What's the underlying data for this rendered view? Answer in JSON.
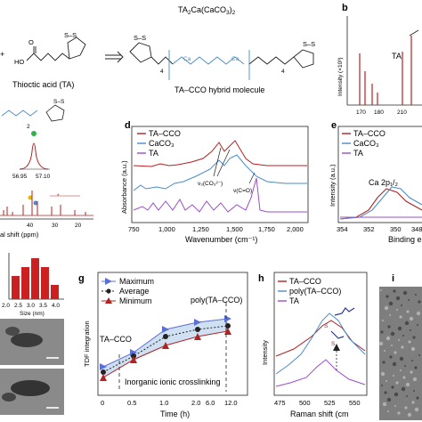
{
  "panel_labels": {
    "b": "b",
    "d": "d",
    "e": "e",
    "g": "g",
    "h": "h",
    "i": "i"
  },
  "top": {
    "formula_pre": "TA",
    "formula_sub1": "2",
    "formula_mid": "Ca(CaCO",
    "formula_sub2": "3",
    "formula_end": ")",
    "formula_sub3": "2",
    "ta_name": "Thioctic acid (TA)",
    "hybrid_name": "TA–CCO hybrid molecule",
    "ss": "S–S",
    "sub4": "4",
    "o": "O",
    "oh": "OH",
    "ho": "HO",
    "ca": "Ca",
    "plus": "+"
  },
  "panel_b": {
    "ylabel": "Intensity (×10³)",
    "ticks_x": [
      "170",
      "180",
      "210"
    ],
    "label_ta": "TA"
  },
  "panel_c": {
    "xlabel": "al shift (ppm)",
    "ticks": [
      "40",
      "30",
      "20"
    ],
    "peak_ticks": [
      "56.95",
      "57.10"
    ],
    "sub2": "2"
  },
  "panel_d": {
    "ylabel": "Absorbance (a.u.)",
    "xlabel": "Wavenumber (cm⁻¹)",
    "xticks": [
      "750",
      "1,000",
      "1,250",
      "1,500",
      "1,750",
      "2,000"
    ],
    "legend": [
      "TA–CCO",
      "CaCO₃",
      "TA"
    ],
    "ann1": "ν₃(CO₃²⁻)",
    "ann2": "ν(C=O)"
  },
  "panel_e": {
    "ylabel": "Intensity (a.u.)",
    "xlabel": "Binding e",
    "xticks": [
      "354",
      "352",
      "350",
      "348"
    ],
    "legend": [
      "TA–CCO",
      "CaCO₃",
      "TA"
    ],
    "peak": "Ca 2p₁/₂"
  },
  "panel_f": {
    "xlabel": "Size (nm)",
    "xticks": [
      "2.0",
      "2.5",
      "3.0",
      "3.5",
      "4.0"
    ]
  },
  "panel_g": {
    "ylabel": "TDF integration",
    "xlabel": "Time (h)",
    "xticks": [
      "0",
      "0.5",
      "1.0",
      "2.0",
      "6.0",
      "12.0"
    ],
    "yticks": [
      "4",
      "6",
      "8",
      "10",
      "12",
      "14"
    ],
    "legend": [
      "Maximum",
      "Average",
      "Minimum"
    ],
    "ann_left": "TA–CCO",
    "ann_right": "poly(TA–CCO)",
    "ann_bottom": "Inorganic ionic crosslinking"
  },
  "panel_h": {
    "ylabel": "Intensity",
    "xlabel": "Raman shift (cm",
    "xticks": [
      "475",
      "500",
      "525",
      "550"
    ],
    "legend": [
      "TA–CCO",
      "poly(TA–CCO)",
      "TA"
    ]
  },
  "colors": {
    "red": "#b22222",
    "blue": "#4a8cc7",
    "purple": "#9b4dca",
    "bar": "#cc1f1f",
    "cyan": "#5aa9e6"
  }
}
